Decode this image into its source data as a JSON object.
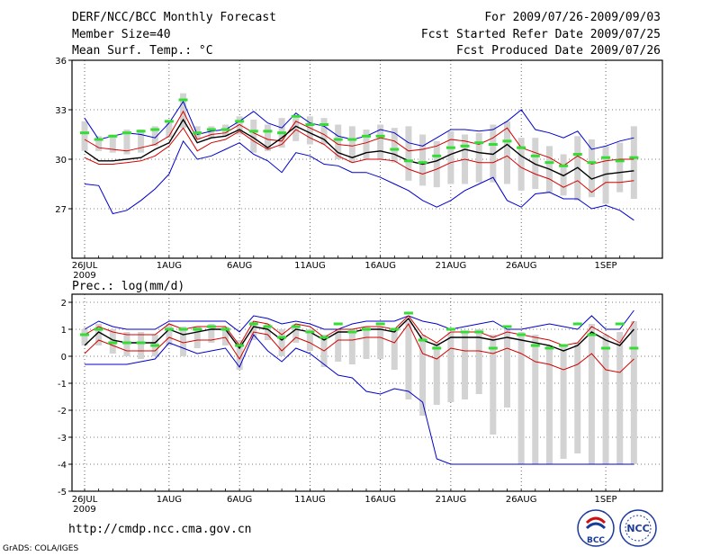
{
  "header": {
    "title": "DERF/NCC/BCC Monthly Forecast",
    "member_size": "Member Size=40",
    "variable": "Mean Surf. Temp.: °C",
    "period": "For 2009/07/26-2009/09/03",
    "started": "Fcst Started Refer Date 2009/07/25",
    "produced": "Fcst Produced Date 2009/07/26"
  },
  "footer": {
    "url": "http://cmdp.ncc.cma.gov.cn",
    "grads": "GrADS: COLA/IGES",
    "logo_bcc": "BCC",
    "logo_ncc": "NCC"
  },
  "colors": {
    "box": "#d3d3d3",
    "mean": "#000000",
    "quartile": "#d40000",
    "extreme": "#0000cc",
    "marker": "#33dd33"
  },
  "chart_data": [
    {
      "type": "line",
      "title": "Mean Surf. Temp.: °C",
      "ylim": [
        24,
        36
      ],
      "yticks": [
        "36",
        "33",
        "30",
        "27"
      ],
      "ytick_values": [
        36,
        33,
        30,
        27
      ],
      "xticks": [
        {
          "day": 0,
          "label": "26JUL",
          "sub": "2009"
        },
        {
          "day": 6,
          "label": "1AUG"
        },
        {
          "day": 11,
          "label": "6AUG"
        },
        {
          "day": 16,
          "label": "11AUG"
        },
        {
          "day": 21,
          "label": "16AUG"
        },
        {
          "day": 26,
          "label": "21AUG"
        },
        {
          "day": 31,
          "label": "26AUG"
        },
        {
          "day": 37,
          "label": "1SEP"
        }
      ],
      "days": 40,
      "series": [
        {
          "name": "max",
          "values": [
            32.5,
            31.2,
            31.4,
            31.6,
            31.5,
            31.3,
            32.2,
            33.5,
            31.5,
            31.7,
            31.8,
            32.3,
            32.9,
            32.2,
            31.9,
            32.8,
            32.2,
            32.0,
            31.4,
            31.2,
            31.4,
            31.8,
            31.6,
            31.0,
            30.8,
            31.3,
            31.8,
            31.8,
            31.7,
            31.8,
            32.3,
            33.0,
            31.8,
            31.6,
            31.3,
            31.7,
            30.6,
            30.8,
            31.1,
            31.3
          ]
        },
        {
          "name": "q3",
          "values": [
            31.2,
            30.7,
            30.6,
            30.5,
            30.7,
            30.9,
            31.4,
            32.9,
            31.2,
            31.5,
            31.6,
            32.1,
            31.6,
            31.2,
            31.1,
            32.3,
            31.9,
            31.5,
            30.9,
            30.8,
            31.0,
            31.3,
            31.1,
            30.5,
            30.6,
            30.8,
            31.2,
            31.1,
            30.9,
            31.3,
            31.9,
            30.7,
            30.4,
            30.1,
            29.6,
            30.2,
            29.7,
            29.9,
            30.0,
            30.0
          ]
        },
        {
          "name": "mean",
          "values": [
            30.5,
            29.9,
            29.9,
            30.0,
            30.1,
            30.6,
            31.0,
            32.4,
            31.0,
            31.3,
            31.4,
            31.8,
            31.3,
            30.7,
            31.3,
            32.0,
            31.6,
            31.2,
            30.4,
            30.1,
            30.4,
            30.5,
            30.3,
            29.9,
            29.7,
            29.9,
            30.3,
            30.6,
            30.4,
            30.3,
            30.9,
            30.2,
            29.7,
            29.4,
            29.0,
            29.5,
            28.8,
            29.1,
            29.2,
            29.3
          ]
        },
        {
          "name": "q1",
          "values": [
            30.1,
            29.7,
            29.7,
            29.8,
            29.9,
            30.2,
            30.8,
            31.9,
            30.5,
            31.0,
            31.2,
            31.7,
            31.1,
            30.6,
            30.9,
            31.8,
            31.3,
            30.9,
            30.2,
            29.8,
            30.0,
            30.0,
            29.9,
            29.4,
            29.1,
            29.4,
            29.8,
            30.0,
            29.8,
            29.8,
            30.2,
            29.5,
            29.1,
            28.8,
            28.3,
            28.7,
            28.0,
            28.6,
            28.6,
            28.7
          ]
        },
        {
          "name": "min",
          "values": [
            28.5,
            28.4,
            26.7,
            26.9,
            27.5,
            28.2,
            29.1,
            31.1,
            30.0,
            30.2,
            30.6,
            31.0,
            30.3,
            29.9,
            29.2,
            30.4,
            30.2,
            29.7,
            29.6,
            29.2,
            29.2,
            28.9,
            28.5,
            28.1,
            27.5,
            27.1,
            27.5,
            28.1,
            28.5,
            28.9,
            27.5,
            27.1,
            27.9,
            28.0,
            27.6,
            27.6,
            27.0,
            27.2,
            26.9,
            26.3
          ]
        }
      ],
      "boxes": [
        [
          30.5,
          32.3
        ],
        [
          30.5,
          31.4
        ],
        [
          30.4,
          31.5
        ],
        [
          30.3,
          31.8
        ],
        [
          30.4,
          31.8
        ],
        [
          30.8,
          32.0
        ],
        [
          31.3,
          32.3
        ],
        [
          31.9,
          34.0
        ],
        [
          31.2,
          32.0
        ],
        [
          31.3,
          32.0
        ],
        [
          31.4,
          32.1
        ],
        [
          31.5,
          32.6
        ],
        [
          30.4,
          32.4
        ],
        [
          30.5,
          32.1
        ],
        [
          30.7,
          32.5
        ],
        [
          31.1,
          32.5
        ],
        [
          30.9,
          32.6
        ],
        [
          30.9,
          32.5
        ],
        [
          30.0,
          32.1
        ],
        [
          29.8,
          32.0
        ],
        [
          30.0,
          31.8
        ],
        [
          30.0,
          32.1
        ],
        [
          29.8,
          31.9
        ],
        [
          28.7,
          32.0
        ],
        [
          28.4,
          31.5
        ],
        [
          28.3,
          31.1
        ],
        [
          28.5,
          31.7
        ],
        [
          28.5,
          31.5
        ],
        [
          28.6,
          31.6
        ],
        [
          28.6,
          32.1
        ],
        [
          28.5,
          32.3
        ],
        [
          28.1,
          31.3
        ],
        [
          28.2,
          31.3
        ],
        [
          28.0,
          30.8
        ],
        [
          27.8,
          30.3
        ],
        [
          27.5,
          31.4
        ],
        [
          27.7,
          31.2
        ],
        [
          27.3,
          30.8
        ],
        [
          28.0,
          31.0
        ],
        [
          27.6,
          32.0
        ]
      ],
      "markers": [
        31.6,
        31.2,
        31.4,
        31.6,
        31.7,
        31.8,
        32.3,
        33.6,
        31.6,
        31.8,
        31.8,
        32.3,
        31.7,
        31.7,
        31.6,
        32.6,
        32.1,
        32.1,
        31.2,
        31.2,
        31.4,
        31.4,
        30.6,
        29.9,
        29.8,
        30.2,
        30.7,
        30.8,
        31.0,
        30.9,
        31.1,
        30.7,
        30.2,
        29.8,
        29.6,
        30.3,
        29.8,
        30.1,
        29.9,
        30.1
      ]
    },
    {
      "type": "line",
      "title": "Prec.: log(mm/d)",
      "ylim": [
        -5,
        2.3
      ],
      "yticks": [
        "2",
        "1",
        "0",
        "-1",
        "-2",
        "-3",
        "-4",
        "-5"
      ],
      "ytick_values": [
        2,
        1,
        0,
        -1,
        -2,
        -3,
        -4,
        -5
      ],
      "xticks": [
        {
          "day": 0,
          "label": "26JUL",
          "sub": "2009"
        },
        {
          "day": 6,
          "label": "1AUG"
        },
        {
          "day": 11,
          "label": "6AUG"
        },
        {
          "day": 16,
          "label": "11AUG"
        },
        {
          "day": 21,
          "label": "16AUG"
        },
        {
          "day": 26,
          "label": "21AUG"
        },
        {
          "day": 31,
          "label": "26AUG"
        },
        {
          "day": 37,
          "label": "1SEP"
        }
      ],
      "days": 40,
      "series": [
        {
          "name": "max",
          "values": [
            1.0,
            1.3,
            1.1,
            1.0,
            1.0,
            1.0,
            1.3,
            1.3,
            1.3,
            1.3,
            1.3,
            0.9,
            1.5,
            1.4,
            1.2,
            1.3,
            1.2,
            1.0,
            1.0,
            1.2,
            1.3,
            1.3,
            1.3,
            1.5,
            1.3,
            1.2,
            1.0,
            1.1,
            1.2,
            1.3,
            1.0,
            1.0,
            1.1,
            1.2,
            1.1,
            1.0,
            1.5,
            1.0,
            1.0,
            1.7
          ]
        },
        {
          "name": "q3",
          "values": [
            0.8,
            1.1,
            0.9,
            0.8,
            0.8,
            0.8,
            1.2,
            1.0,
            1.1,
            1.1,
            1.1,
            0.4,
            1.3,
            1.2,
            0.8,
            1.2,
            1.1,
            0.7,
            1.0,
            1.0,
            1.1,
            1.1,
            1.0,
            1.5,
            0.8,
            0.5,
            0.9,
            0.9,
            0.9,
            0.7,
            0.9,
            0.8,
            0.7,
            0.6,
            0.4,
            0.5,
            1.1,
            0.8,
            0.5,
            1.3
          ]
        },
        {
          "name": "mean",
          "values": [
            0.4,
            0.9,
            0.6,
            0.5,
            0.5,
            0.5,
            1.0,
            0.8,
            0.9,
            1.0,
            1.0,
            0.3,
            1.1,
            1.0,
            0.6,
            1.0,
            0.9,
            0.6,
            0.9,
            0.9,
            1.0,
            1.0,
            0.9,
            1.4,
            0.6,
            0.4,
            0.7,
            0.7,
            0.7,
            0.6,
            0.7,
            0.6,
            0.5,
            0.4,
            0.2,
            0.4,
            0.9,
            0.6,
            0.4,
            1.0
          ]
        },
        {
          "name": "q1",
          "values": [
            0.1,
            0.6,
            0.4,
            0.2,
            0.2,
            0.2,
            0.7,
            0.5,
            0.6,
            0.6,
            0.7,
            -0.1,
            0.9,
            0.8,
            0.2,
            0.7,
            0.5,
            0.2,
            0.6,
            0.6,
            0.7,
            0.7,
            0.5,
            1.2,
            0.1,
            -0.1,
            0.3,
            0.2,
            0.2,
            0.1,
            0.3,
            0.1,
            -0.2,
            -0.3,
            -0.5,
            -0.3,
            0.1,
            -0.5,
            -0.6,
            -0.1
          ]
        },
        {
          "name": "min",
          "values": [
            -0.3,
            -0.3,
            -0.3,
            -0.3,
            -0.2,
            -0.1,
            0.5,
            0.3,
            0.1,
            0.2,
            0.3,
            -0.4,
            0.8,
            0.2,
            -0.2,
            0.3,
            0.1,
            -0.3,
            -0.7,
            -0.8,
            -1.3,
            -1.4,
            -1.2,
            -1.3,
            -1.7,
            -3.8,
            -4.0,
            -4.0,
            -4.0,
            -4.0,
            -4.0,
            -4.0,
            -4.0,
            -4.0,
            -4.0,
            -4.0,
            -4.0,
            -4.0,
            -4.0,
            -4.0
          ]
        }
      ],
      "boxes": [
        [
          0.4,
          1.0
        ],
        [
          0.4,
          1.2
        ],
        [
          0.1,
          1.0
        ],
        [
          0.0,
          0.9
        ],
        [
          -0.1,
          0.9
        ],
        [
          0.0,
          0.8
        ],
        [
          0.4,
          1.2
        ],
        [
          0.0,
          1.1
        ],
        [
          0.3,
          1.1
        ],
        [
          0.5,
          1.2
        ],
        [
          0.4,
          1.1
        ],
        [
          -0.5,
          0.6
        ],
        [
          0.6,
          1.3
        ],
        [
          0.6,
          1.2
        ],
        [
          0.0,
          1.0
        ],
        [
          0.5,
          1.2
        ],
        [
          0.2,
          1.0
        ],
        [
          -0.4,
          0.8
        ],
        [
          -0.2,
          1.0
        ],
        [
          -0.3,
          1.0
        ],
        [
          -0.1,
          1.1
        ],
        [
          -0.1,
          1.1
        ],
        [
          -0.5,
          1.0
        ],
        [
          -1.6,
          1.3
        ],
        [
          -2.2,
          0.8
        ],
        [
          -1.8,
          0.5
        ],
        [
          -1.7,
          0.9
        ],
        [
          -1.6,
          0.9
        ],
        [
          -1.4,
          1.0
        ],
        [
          -2.9,
          0.8
        ],
        [
          -1.9,
          1.0
        ],
        [
          -4.0,
          0.9
        ],
        [
          -4.0,
          0.8
        ],
        [
          -4.0,
          0.4
        ],
        [
          -3.8,
          0.4
        ],
        [
          -3.6,
          0.5
        ],
        [
          -4.0,
          1.2
        ],
        [
          -4.0,
          0.8
        ],
        [
          -4.0,
          0.9
        ],
        [
          -4.0,
          1.3
        ]
      ],
      "markers": [
        0.8,
        1.0,
        0.5,
        0.5,
        0.5,
        0.4,
        1.0,
        1.0,
        1.0,
        1.1,
        1.0,
        0.4,
        1.2,
        1.1,
        0.7,
        1.1,
        0.9,
        0.7,
        1.2,
        0.9,
        1.0,
        1.2,
        1.0,
        1.6,
        0.6,
        0.3,
        1.0,
        0.9,
        0.9,
        0.3,
        1.1,
        0.8,
        0.4,
        0.3,
        0.4,
        1.2,
        0.8,
        0.3,
        1.2,
        0.3
      ]
    }
  ]
}
